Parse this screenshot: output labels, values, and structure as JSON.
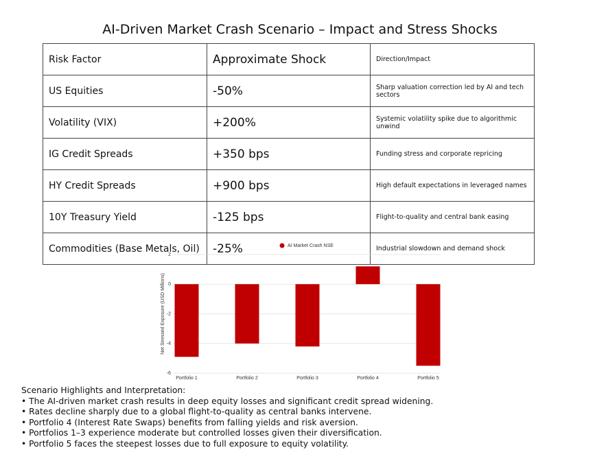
{
  "title": "AI-Driven Market Crash Scenario – Impact and Stress Shocks",
  "table": {
    "header": [
      "Risk Factor",
      "Approximate Shock",
      "Direction/Impact"
    ],
    "rows": [
      [
        "US Equities",
        "-50%",
        "Sharp valuation correction led by AI and tech sectors"
      ],
      [
        "Volatility (VIX)",
        "+200%",
        "Systemic volatility spike due to algorithmic unwind"
      ],
      [
        "IG Credit Spreads",
        "+350 bps",
        "Funding stress and corporate repricing"
      ],
      [
        "HY Credit Spreads",
        "+900 bps",
        "High default expectations in leveraged names"
      ],
      [
        "10Y Treasury Yield",
        "-125 bps",
        "Flight-to-quality and central bank easing"
      ],
      [
        "Commodities (Base Metals, Oil)",
        "-25%",
        "Industrial slowdown and demand shock"
      ]
    ]
  },
  "chart_data": {
    "type": "bar",
    "y_label": "Net Stressed Exposure (USD Millions)",
    "categories": [
      "Portfolio 1",
      "Portfolio 2",
      "Portfolio 3",
      "Portfolio 4",
      "Portfolio 5"
    ],
    "series": [
      {
        "name": "AI Market Crash NSE",
        "color": "#c00000",
        "values": [
          -4.9,
          -4.0,
          -4.2,
          1.2,
          -5.5
        ]
      }
    ],
    "ylim": [
      -6,
      2
    ],
    "yticks": [
      -6,
      -4,
      -2,
      0,
      2
    ],
    "grid": true,
    "legend": "top"
  },
  "highlights": {
    "heading": "Scenario Highlights and Interpretation:",
    "items": [
      "The AI-driven market crash results in deep equity losses and significant credit spread widening.",
      "Rates decline sharply due to a global flight-to-quality as central banks intervene.",
      "Portfolio 4 (Interest Rate Swaps) benefits from falling yields and risk aversion.",
      "Portfolios 1–3 experience moderate but controlled losses given their diversification.",
      "Portfolio 5 faces the steepest losses due to full exposure to equity volatility."
    ]
  }
}
